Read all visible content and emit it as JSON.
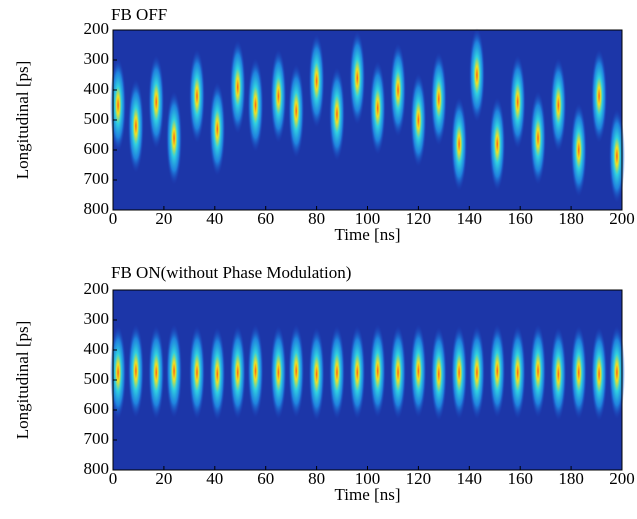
{
  "chart_data": [
    {
      "type": "streak",
      "title": "FB OFF",
      "xlabel": "Time [ns]",
      "ylabel": "Longitudinal [ps]",
      "x": [
        2,
        9,
        17,
        24,
        33,
        41,
        49,
        56,
        65,
        72,
        80,
        88,
        96,
        104,
        112,
        120,
        128,
        136,
        143,
        151,
        159,
        167,
        175,
        183,
        191,
        198
      ],
      "values": [
        450,
        520,
        440,
        560,
        420,
        530,
        390,
        450,
        420,
        470,
        370,
        480,
        360,
        460,
        400,
        500,
        430,
        580,
        350,
        580,
        440,
        560,
        450,
        600,
        420,
        620
      ],
      "xlim": [
        0,
        200
      ],
      "xticks": [
        0,
        20,
        40,
        60,
        80,
        100,
        120,
        140,
        160,
        180,
        200
      ],
      "ylim": [
        200,
        800
      ],
      "yticks": [
        200,
        300,
        400,
        500,
        600,
        700,
        800
      ],
      "y_reversed": true
    },
    {
      "type": "streak",
      "title": "FB ON(without Phase Modulation)",
      "xlabel": "Time [ns]",
      "ylabel": "Longitudinal [ps]",
      "x": [
        2,
        9,
        17,
        24,
        33,
        41,
        49,
        56,
        65,
        72,
        80,
        88,
        96,
        104,
        112,
        120,
        128,
        136,
        143,
        151,
        159,
        167,
        175,
        183,
        191,
        198
      ],
      "values": [
        475,
        470,
        475,
        470,
        475,
        480,
        475,
        470,
        475,
        470,
        480,
        475,
        475,
        470,
        475,
        470,
        480,
        475,
        475,
        470,
        475,
        470,
        480,
        475,
        480,
        475
      ],
      "xlim": [
        0,
        200
      ],
      "xticks": [
        0,
        20,
        40,
        60,
        80,
        100,
        120,
        140,
        160,
        180,
        200
      ],
      "ylim": [
        200,
        800
      ],
      "yticks": [
        200,
        300,
        400,
        500,
        600,
        700,
        800
      ],
      "y_reversed": true
    }
  ]
}
